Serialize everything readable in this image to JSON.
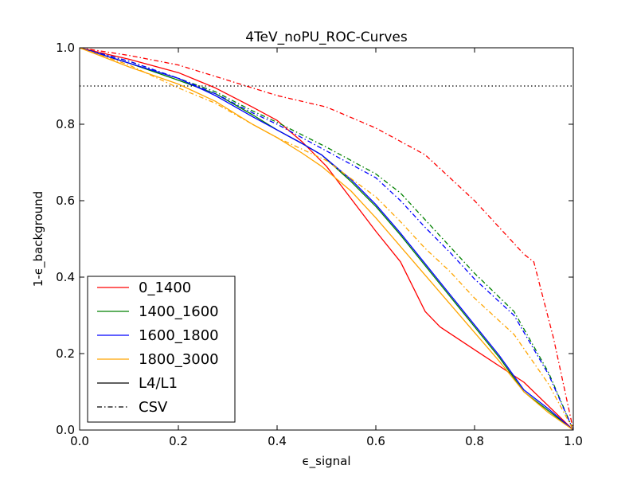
{
  "chart_data": {
    "type": "line",
    "title": "4TeV_noPU_ROC-Curves",
    "xlabel": "ϵ_signal",
    "ylabel": "1-ϵ_background",
    "xlim": [
      0.0,
      1.0
    ],
    "ylim": [
      0.0,
      1.0
    ],
    "x_ticks": [
      "0.0",
      "0.2",
      "0.4",
      "0.6",
      "0.8",
      "1.0"
    ],
    "y_ticks": [
      "0.0",
      "0.2",
      "0.4",
      "0.6",
      "0.8",
      "1.0"
    ],
    "grid": false,
    "legend_position": "lower-left",
    "reference_line": {
      "y": 0.9,
      "style": "dotted",
      "color": "#000000"
    },
    "legend": [
      {
        "label": "0_1400",
        "color": "#ff0000",
        "dash": "solid"
      },
      {
        "label": "1400_1600",
        "color": "#008000",
        "dash": "solid"
      },
      {
        "label": "1600_1800",
        "color": "#0000ff",
        "dash": "solid"
      },
      {
        "label": "1800_3000",
        "color": "#ffa500",
        "dash": "solid"
      },
      {
        "label": "L4/L1",
        "color": "#000000",
        "dash": "solid"
      },
      {
        "label": "CSV",
        "color": "#000000",
        "dash": "dashdot"
      }
    ],
    "series": [
      {
        "name": "0_1400",
        "legend_group": "L4/L1",
        "color": "#ff0000",
        "dash": "solid",
        "points": [
          [
            0.0,
            1.0
          ],
          [
            0.05,
            0.985
          ],
          [
            0.1,
            0.97
          ],
          [
            0.2,
            0.935
          ],
          [
            0.275,
            0.895
          ],
          [
            0.35,
            0.845
          ],
          [
            0.4,
            0.81
          ],
          [
            0.45,
            0.755
          ],
          [
            0.5,
            0.69
          ],
          [
            0.55,
            0.605
          ],
          [
            0.6,
            0.52
          ],
          [
            0.65,
            0.44
          ],
          [
            0.7,
            0.31
          ],
          [
            0.73,
            0.27
          ],
          [
            0.8,
            0.21
          ],
          [
            0.9,
            0.125
          ],
          [
            1.0,
            0.0
          ]
        ]
      },
      {
        "name": "1400_1600",
        "legend_group": "L4/L1",
        "color": "#008000",
        "dash": "solid",
        "points": [
          [
            0.0,
            1.0
          ],
          [
            0.05,
            0.98
          ],
          [
            0.1,
            0.96
          ],
          [
            0.2,
            0.915
          ],
          [
            0.275,
            0.88
          ],
          [
            0.35,
            0.825
          ],
          [
            0.4,
            0.785
          ],
          [
            0.45,
            0.75
          ],
          [
            0.49,
            0.72
          ],
          [
            0.55,
            0.65
          ],
          [
            0.6,
            0.585
          ],
          [
            0.65,
            0.51
          ],
          [
            0.7,
            0.43
          ],
          [
            0.75,
            0.35
          ],
          [
            0.8,
            0.27
          ],
          [
            0.85,
            0.19
          ],
          [
            0.9,
            0.1
          ],
          [
            0.95,
            0.05
          ],
          [
            1.0,
            0.0
          ]
        ]
      },
      {
        "name": "1600_1800",
        "legend_group": "L4/L1",
        "color": "#0000ff",
        "dash": "solid",
        "points": [
          [
            0.0,
            1.0
          ],
          [
            0.05,
            0.98
          ],
          [
            0.1,
            0.96
          ],
          [
            0.2,
            0.92
          ],
          [
            0.275,
            0.875
          ],
          [
            0.35,
            0.82
          ],
          [
            0.4,
            0.785
          ],
          [
            0.45,
            0.75
          ],
          [
            0.49,
            0.72
          ],
          [
            0.55,
            0.655
          ],
          [
            0.6,
            0.59
          ],
          [
            0.65,
            0.515
          ],
          [
            0.7,
            0.435
          ],
          [
            0.75,
            0.355
          ],
          [
            0.8,
            0.275
          ],
          [
            0.85,
            0.195
          ],
          [
            0.9,
            0.105
          ],
          [
            0.95,
            0.055
          ],
          [
            1.0,
            0.0
          ]
        ]
      },
      {
        "name": "1800_3000",
        "legend_group": "L4/L1",
        "color": "#ffa500",
        "dash": "solid",
        "points": [
          [
            0.0,
            1.0
          ],
          [
            0.05,
            0.975
          ],
          [
            0.1,
            0.95
          ],
          [
            0.2,
            0.905
          ],
          [
            0.275,
            0.86
          ],
          [
            0.35,
            0.8
          ],
          [
            0.4,
            0.765
          ],
          [
            0.45,
            0.725
          ],
          [
            0.49,
            0.69
          ],
          [
            0.55,
            0.625
          ],
          [
            0.6,
            0.555
          ],
          [
            0.65,
            0.48
          ],
          [
            0.7,
            0.405
          ],
          [
            0.75,
            0.33
          ],
          [
            0.8,
            0.255
          ],
          [
            0.85,
            0.18
          ],
          [
            0.9,
            0.1
          ],
          [
            0.95,
            0.045
          ],
          [
            1.0,
            0.0
          ]
        ]
      },
      {
        "name": "0_1400",
        "legend_group": "CSV",
        "color": "#ff0000",
        "dash": "dashdot",
        "points": [
          [
            0.0,
            1.0
          ],
          [
            0.1,
            0.98
          ],
          [
            0.2,
            0.955
          ],
          [
            0.3,
            0.915
          ],
          [
            0.4,
            0.875
          ],
          [
            0.5,
            0.845
          ],
          [
            0.6,
            0.79
          ],
          [
            0.7,
            0.72
          ],
          [
            0.8,
            0.6
          ],
          [
            0.9,
            0.46
          ],
          [
            0.92,
            0.44
          ],
          [
            0.96,
            0.24
          ],
          [
            1.0,
            0.0
          ]
        ]
      },
      {
        "name": "1400_1600",
        "legend_group": "CSV",
        "color": "#008000",
        "dash": "dashdot",
        "points": [
          [
            0.0,
            1.0
          ],
          [
            0.1,
            0.965
          ],
          [
            0.2,
            0.92
          ],
          [
            0.275,
            0.885
          ],
          [
            0.35,
            0.835
          ],
          [
            0.4,
            0.805
          ],
          [
            0.5,
            0.74
          ],
          [
            0.6,
            0.67
          ],
          [
            0.65,
            0.62
          ],
          [
            0.7,
            0.55
          ],
          [
            0.75,
            0.48
          ],
          [
            0.8,
            0.41
          ],
          [
            0.88,
            0.31
          ],
          [
            0.95,
            0.15
          ],
          [
            1.0,
            0.0
          ]
        ]
      },
      {
        "name": "1600_1800",
        "legend_group": "CSV",
        "color": "#0000ff",
        "dash": "dashdot",
        "points": [
          [
            0.0,
            1.0
          ],
          [
            0.1,
            0.965
          ],
          [
            0.2,
            0.92
          ],
          [
            0.275,
            0.88
          ],
          [
            0.35,
            0.83
          ],
          [
            0.4,
            0.8
          ],
          [
            0.5,
            0.73
          ],
          [
            0.6,
            0.66
          ],
          [
            0.65,
            0.6
          ],
          [
            0.7,
            0.53
          ],
          [
            0.75,
            0.465
          ],
          [
            0.8,
            0.395
          ],
          [
            0.88,
            0.3
          ],
          [
            0.95,
            0.145
          ],
          [
            1.0,
            0.0
          ]
        ]
      },
      {
        "name": "1800_3000",
        "legend_group": "CSV",
        "color": "#ffa500",
        "dash": "dashdot",
        "points": [
          [
            0.0,
            1.0
          ],
          [
            0.1,
            0.955
          ],
          [
            0.2,
            0.895
          ],
          [
            0.275,
            0.855
          ],
          [
            0.35,
            0.8
          ],
          [
            0.4,
            0.765
          ],
          [
            0.5,
            0.705
          ],
          [
            0.6,
            0.61
          ],
          [
            0.65,
            0.545
          ],
          [
            0.7,
            0.475
          ],
          [
            0.75,
            0.415
          ],
          [
            0.8,
            0.345
          ],
          [
            0.88,
            0.25
          ],
          [
            0.95,
            0.12
          ],
          [
            1.0,
            0.0
          ]
        ]
      }
    ]
  }
}
